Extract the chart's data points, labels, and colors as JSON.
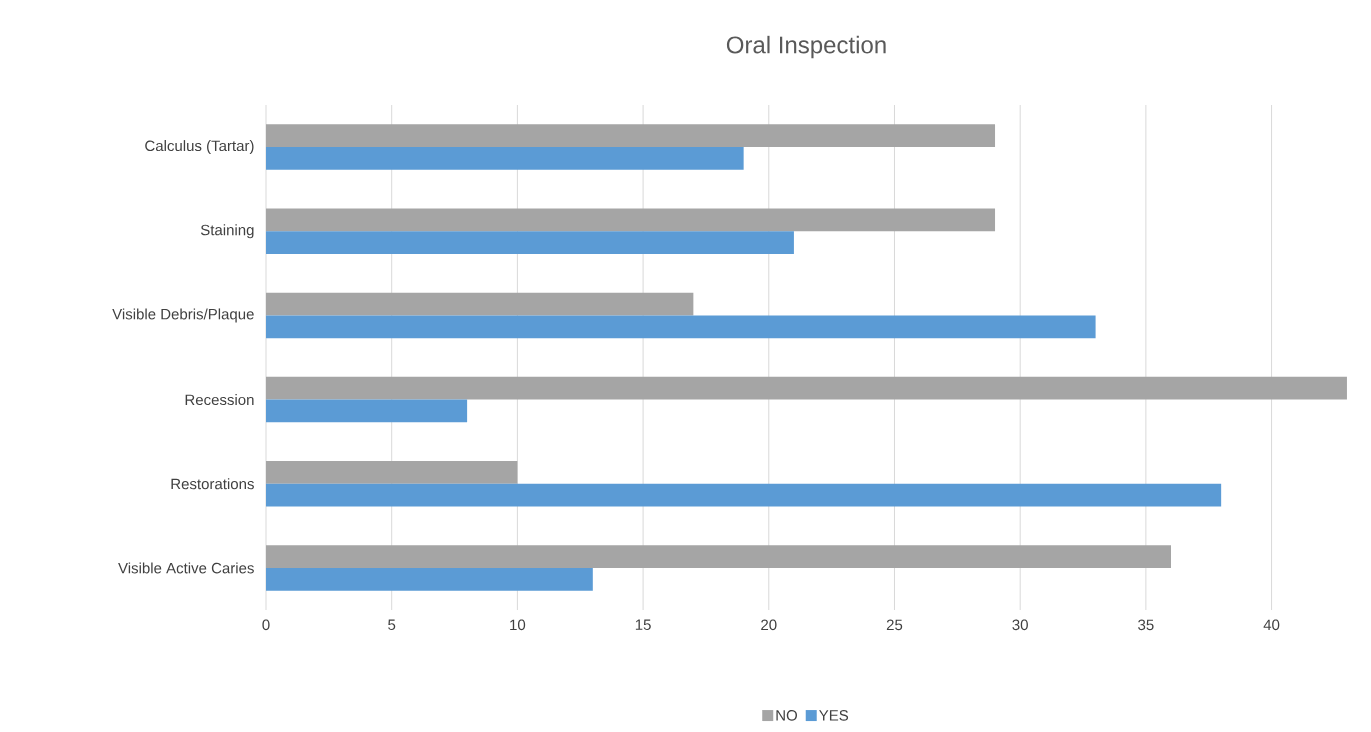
{
  "chart_data": {
    "type": "bar",
    "orientation": "horizontal",
    "title": "Oral Inspection",
    "categories": [
      "Calculus (Tartar)",
      "Staining",
      "Visible Debris/Plaque",
      "Recession",
      "Restorations",
      "Visible Active Caries"
    ],
    "series": [
      {
        "name": "NO",
        "color": "#a5a5a5",
        "values": [
          29,
          29,
          17,
          43,
          10,
          36
        ]
      },
      {
        "name": "YES",
        "color": "#5b9bd5",
        "values": [
          19,
          21,
          33,
          8,
          38,
          13
        ]
      }
    ],
    "xlim": [
      0,
      43
    ],
    "xticks": [
      0,
      5,
      10,
      15,
      20,
      25,
      30,
      35,
      40
    ],
    "grid": "x",
    "legend": "bottom"
  }
}
